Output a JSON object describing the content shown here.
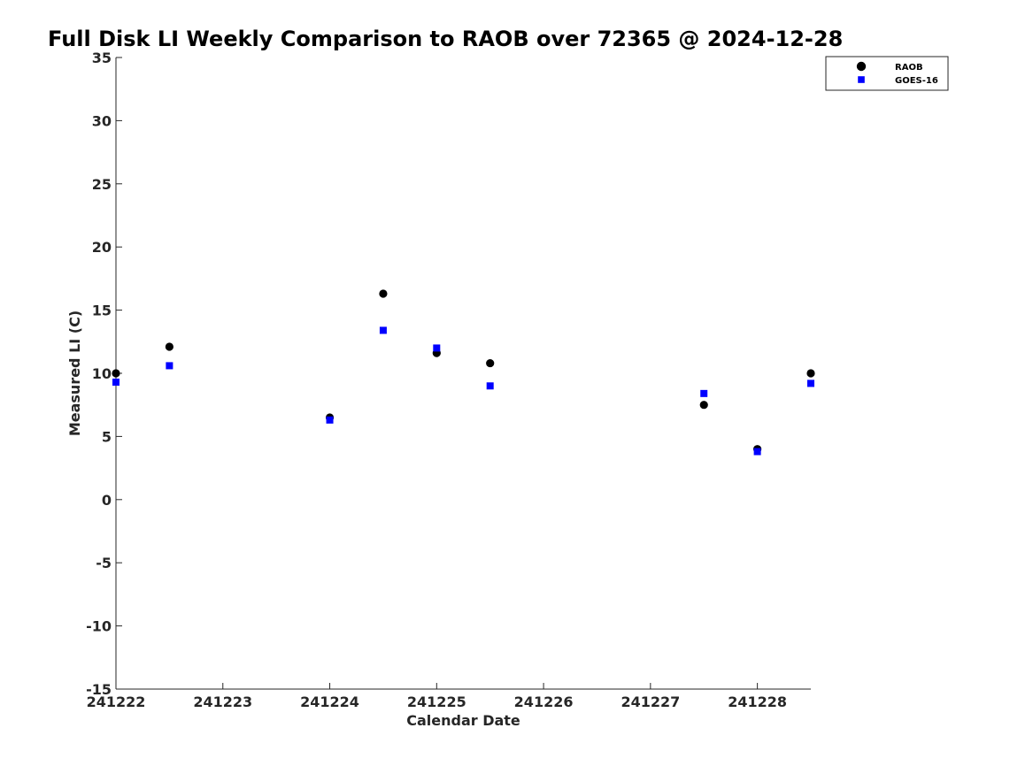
{
  "chart_data": {
    "type": "scatter",
    "title": "Full Disk LI Weekly Comparison to RAOB over 72365 @ 2024-12-28",
    "xlabel": "Calendar Date",
    "ylabel": "Measured LI (C)",
    "xlim": [
      241222,
      241228.5
    ],
    "ylim": [
      -15,
      35
    ],
    "xticks": [
      241222,
      241223,
      241224,
      241225,
      241226,
      241227,
      241228
    ],
    "xtick_labels": [
      "241222",
      "241223",
      "241224",
      "241225",
      "241226",
      "241227",
      "241228"
    ],
    "yticks": [
      35,
      30,
      25,
      20,
      15,
      10,
      5,
      0,
      -5,
      -10,
      -15
    ],
    "ytick_labels": [
      "35",
      "30",
      "25",
      "20",
      "15",
      "10",
      "5",
      "0",
      "-5",
      "-10",
      "-15"
    ],
    "grid": false,
    "legend_position": "top-right",
    "series": [
      {
        "name": "RAOB",
        "marker": "circle",
        "color": "#000000",
        "x": [
          241222,
          241222.5,
          241224,
          241224.5,
          241225,
          241225.5,
          241227.5,
          241228,
          241228.5
        ],
        "y": [
          10.0,
          12.1,
          6.5,
          16.3,
          11.6,
          10.8,
          7.5,
          4.0,
          10.0
        ]
      },
      {
        "name": "GOES-16",
        "marker": "square",
        "color": "#0000ff",
        "x": [
          241222,
          241222.5,
          241224,
          241224.5,
          241225,
          241225.5,
          241227.5,
          241228,
          241228.5
        ],
        "y": [
          9.3,
          10.6,
          6.3,
          13.4,
          12.0,
          9.0,
          8.4,
          3.8,
          9.2
        ]
      }
    ]
  }
}
